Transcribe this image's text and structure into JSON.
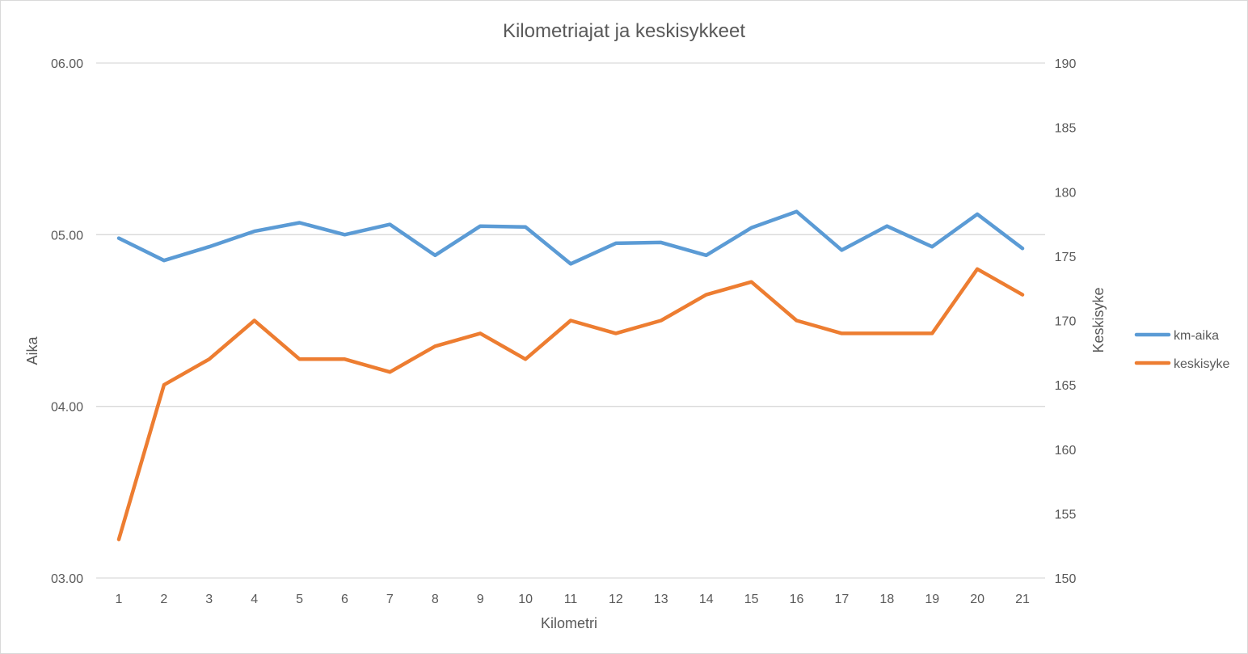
{
  "chart_data": {
    "type": "line",
    "title": "Kilometriajat ja keskisykkeet",
    "xlabel": "Kilometri",
    "ylabel_left": "Aika",
    "ylabel_right": "Keskisyke",
    "categories": [
      "1",
      "2",
      "3",
      "4",
      "5",
      "6",
      "7",
      "8",
      "9",
      "10",
      "11",
      "12",
      "13",
      "14",
      "15",
      "16",
      "17",
      "18",
      "19",
      "20",
      "21"
    ],
    "y_left": {
      "min": 3.0,
      "max": 6.0,
      "ticks": [
        3.0,
        4.0,
        5.0,
        6.0
      ],
      "tick_labels": [
        "03.00",
        "04.00",
        "05.00",
        "06.00"
      ]
    },
    "y_right": {
      "min": 150,
      "max": 190,
      "ticks": [
        150,
        155,
        160,
        165,
        170,
        175,
        180,
        185,
        190
      ],
      "tick_labels": [
        "150",
        "155",
        "160",
        "165",
        "170",
        "175",
        "180",
        "185",
        "190"
      ]
    },
    "grid": true,
    "legend_position": "right",
    "series": [
      {
        "name": "km-aika",
        "axis": "left",
        "color": "#5b9bd5",
        "values": [
          4.98,
          4.85,
          4.93,
          5.02,
          5.07,
          5.0,
          5.06,
          4.88,
          5.05,
          5.045,
          4.83,
          4.95,
          4.955,
          4.88,
          5.04,
          5.135,
          4.91,
          5.05,
          4.93,
          5.12,
          4.92
        ]
      },
      {
        "name": "keskisyke",
        "axis": "right",
        "color": "#ed7d31",
        "values": [
          153,
          165,
          167,
          170,
          167,
          167,
          166,
          168,
          169,
          167,
          170,
          169,
          170,
          172,
          173,
          170,
          169,
          169,
          169,
          174,
          172
        ]
      }
    ]
  }
}
